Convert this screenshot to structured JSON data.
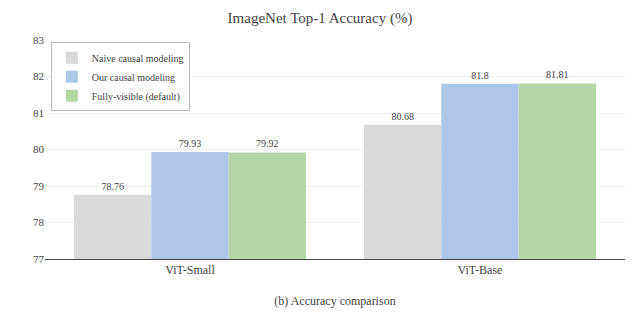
{
  "chart_data": {
    "type": "bar",
    "title": "ImageNet Top-1 Accuracy (%)",
    "xlabel": "(b) Accuracy comparison",
    "categories": [
      "ViT-Small",
      "ViT-Base"
    ],
    "series": [
      {
        "name": "Naive causal modeling",
        "color": "#d9d9d9",
        "values": [
          78.76,
          80.68
        ]
      },
      {
        "name": "Our causal modeling",
        "color": "#aec6e8",
        "values": [
          79.93,
          81.8
        ]
      },
      {
        "name": "Fully-visible (default)",
        "color": "#b5d6a7",
        "values": [
          79.92,
          81.81
        ]
      }
    ],
    "ylim": [
      77,
      83
    ],
    "yticks": [
      77,
      78,
      79,
      80,
      81,
      82,
      83
    ],
    "grid": true,
    "legend": "upper left",
    "data_labels": true
  }
}
